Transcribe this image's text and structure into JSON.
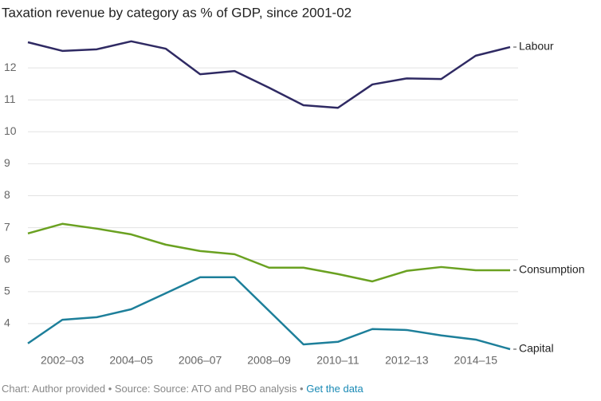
{
  "chart_data": {
    "type": "line",
    "title": "Taxation revenue by category as % of GDP, since 2001-02",
    "categories": [
      null,
      "2002–03",
      null,
      "2004–05",
      null,
      "2006–07",
      null,
      "2008–09",
      null,
      "2010–11",
      null,
      "2012–13",
      null,
      "2014–15",
      null
    ],
    "series": [
      {
        "name": "Labour",
        "color": "#2f2a63",
        "values": [
          12.8,
          12.53,
          12.58,
          12.83,
          12.6,
          11.8,
          11.9,
          11.38,
          10.83,
          10.75,
          11.48,
          11.67,
          11.65,
          12.38,
          12.65
        ]
      },
      {
        "name": "Consumption",
        "color": "#6aa121",
        "values": [
          6.82,
          7.12,
          6.97,
          6.79,
          6.47,
          6.27,
          6.17,
          5.75,
          5.75,
          5.55,
          5.32,
          5.65,
          5.77,
          5.67,
          5.67
        ]
      },
      {
        "name": "Capital",
        "color": "#1d7f9a",
        "values": [
          3.38,
          4.12,
          4.2,
          4.45,
          4.95,
          5.45,
          5.45,
          4.4,
          3.35,
          3.43,
          3.83,
          3.8,
          3.63,
          3.5,
          3.2
        ]
      }
    ],
    "ylim": [
      3.2,
      13
    ],
    "yticks": [
      4,
      5,
      6,
      7,
      8,
      9,
      10,
      11,
      12
    ],
    "grid": true,
    "source": "Chart: Author provided • Source: Source: ATO and PBO analysis •",
    "link": "Get the data"
  }
}
